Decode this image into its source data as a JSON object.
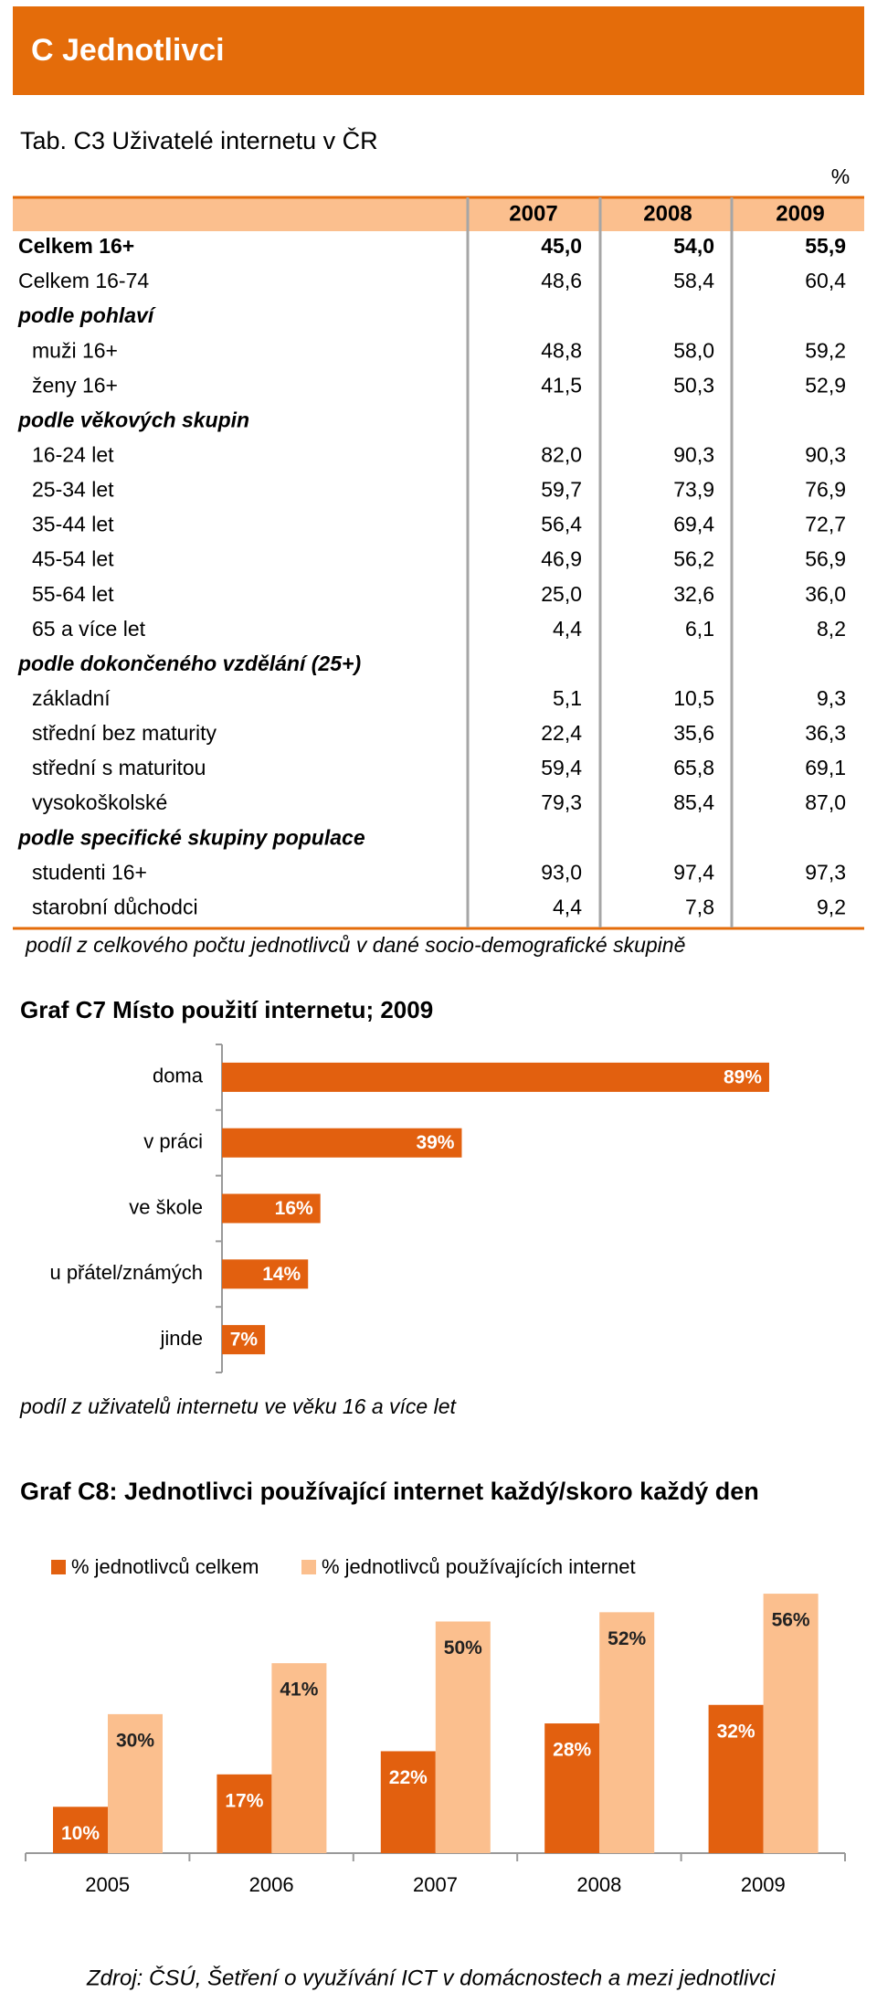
{
  "header": {
    "title": "C  Jednotlivci"
  },
  "table": {
    "title": "Tab. C3 Uživatelé internetu v ČR",
    "unit": "%",
    "columns": [
      "2007",
      "2008",
      "2009"
    ],
    "rows": [
      [
        "Celkem 16+",
        "45,0",
        "54,0",
        "55,9"
      ],
      [
        "Celkem 16-74",
        "48,6",
        "58,4",
        "60,4"
      ],
      [
        "podle pohlaví"
      ],
      [
        "muži 16+",
        "48,8",
        "58,0",
        "59,2"
      ],
      [
        "ženy 16+",
        "41,5",
        "50,3",
        "52,9"
      ],
      [
        "podle věkových skupin"
      ],
      [
        "16-24 let",
        "82,0",
        "90,3",
        "90,3"
      ],
      [
        "25-34 let",
        "59,7",
        "73,9",
        "76,9"
      ],
      [
        "35-44 let",
        "56,4",
        "69,4",
        "72,7"
      ],
      [
        "45-54 let",
        "46,9",
        "56,2",
        "56,9"
      ],
      [
        "55-64 let",
        "25,0",
        "32,6",
        "36,0"
      ],
      [
        "65 a více let",
        "4,4",
        "6,1",
        "8,2"
      ],
      [
        "podle dokončeného vzdělání (25+)"
      ],
      [
        "základní",
        "5,1",
        "10,5",
        "9,3"
      ],
      [
        "střední bez maturity",
        "22,4",
        "35,6",
        "36,3"
      ],
      [
        "střední s maturitou",
        "59,4",
        "65,8",
        "69,1"
      ],
      [
        "vysokoškolské",
        "79,3",
        "85,4",
        "87,0"
      ],
      [
        "podle specifické skupiny populace"
      ],
      [
        "studenti 16+",
        "93,0",
        "97,4",
        "97,3"
      ],
      [
        "starobní důchodci",
        "4,4",
        "7,8",
        "9,2"
      ]
    ],
    "note": "podíl z celkového počtu jednotlivců v dané socio-demografické skupině"
  },
  "chart_data": [
    {
      "type": "bar",
      "orientation": "horizontal",
      "title": "Graf C7 Místo použití internetu; 2009",
      "categories": [
        "doma",
        "v práci",
        "ve škole",
        "u přátel/známých",
        "jinde"
      ],
      "values": [
        89,
        39,
        16,
        14,
        7
      ],
      "value_labels": [
        "89%",
        "39%",
        "16%",
        "14%",
        "7%"
      ],
      "color": "#e2600f",
      "xlim": [
        0,
        100
      ],
      "note": "podíl z uživatelů internetu ve věku 16 a více let"
    },
    {
      "type": "bar",
      "orientation": "vertical",
      "title": "Graf C8: Jednotlivci používající internet každý/skoro každý den",
      "categories": [
        "2005",
        "2006",
        "2007",
        "2008",
        "2009"
      ],
      "series": [
        {
          "name": "% jednotlivců celkem",
          "color": "#e2600f",
          "values": [
            10,
            17,
            22,
            28,
            32
          ],
          "value_labels": [
            "10%",
            "17%",
            "22%",
            "28%",
            "32%"
          ]
        },
        {
          "name": "% jednotlivců používajících internet",
          "color": "#fbbf8e",
          "values": [
            30,
            41,
            50,
            52,
            56
          ],
          "value_labels": [
            "30%",
            "41%",
            "50%",
            "52%",
            "56%"
          ]
        }
      ],
      "ylim": [
        0,
        100
      ],
      "legend": "top"
    }
  ],
  "source": "Zdroj: ČSÚ, Šetření o využívání ICT v domácnostech a mezi jednotlivci"
}
